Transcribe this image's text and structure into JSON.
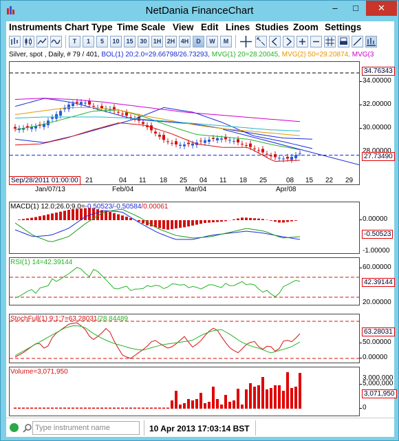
{
  "window": {
    "title": "NetDania FinanceChart",
    "min": "–",
    "max": "□",
    "close": "✕"
  },
  "menu": [
    "Instruments",
    "Chart Type",
    "Time Scale",
    "View",
    "Edit",
    "Lines",
    "Studies",
    "Zoom",
    "Settings"
  ],
  "toolbar": {
    "buttons": [
      "T",
      "1",
      "5",
      "10",
      "15",
      "30",
      "1H",
      "2H",
      "4H",
      "D",
      "W",
      "M"
    ],
    "active": "D"
  },
  "header": {
    "instrument": "Silver, spot , Daily, # 79 / 401, ",
    "bol": "BOL(1) 20;2.0=29.66798/26.73293, ",
    "mvg1": "MVG(1) 20=28.20045, ",
    "mvg2": "MVG(2) 50=29.20874, ",
    "mvg3": "MVG(3"
  },
  "colors": {
    "bol": "#1a2ad6",
    "mvg1": "#25b225",
    "mvg2": "#e69500",
    "mvg3": "#cc00cc",
    "up": "#2a5ad6",
    "down": "#d41010"
  },
  "main": {
    "scale": [
      "34.00000",
      "32.00000",
      "30.00000"
    ],
    "cut_tick": "28.00000",
    "high_box": "34.76343",
    "last_box": "27.73490",
    "date_box": "Sep/28/2011 01:00:00",
    "days": [
      "21",
      "04",
      "11",
      "18",
      "25",
      "04",
      "11",
      "18",
      "25",
      "08",
      "15",
      "22",
      "29"
    ],
    "months": [
      "Jan/07/13",
      "Feb/04",
      "Mar/04",
      "Apr/08"
    ]
  },
  "macd": {
    "label": "MACD(1) 12.0;26.0;9.0=",
    "v1": "-0.50523",
    "v2": "/-0.50584",
    "v3": "/0.00061",
    "ticks": [
      "0.00000",
      "-1.00000"
    ],
    "box": "-0.50523"
  },
  "rsi": {
    "label": "RSI(1) 14=42.39144",
    "ticks": [
      "60.00000",
      "20.00000"
    ],
    "box": "42.39144"
  },
  "stoch": {
    "label": "StochFull(1) 9;1;7=",
    "v1": "63.28031",
    "v2": "/28.84489",
    "ticks": [
      "50.00000",
      "0.00000"
    ],
    "box": "63.28031"
  },
  "volume": {
    "label": "Volume=3,071,950",
    "ticks": [
      "5,000,000",
      "0"
    ],
    "cut_tick": "3,000,000",
    "box": "3,071,950"
  },
  "status": {
    "placeholder": "Type instrument name",
    "time": "10 Apr 2013 17:03:14 BST"
  }
}
